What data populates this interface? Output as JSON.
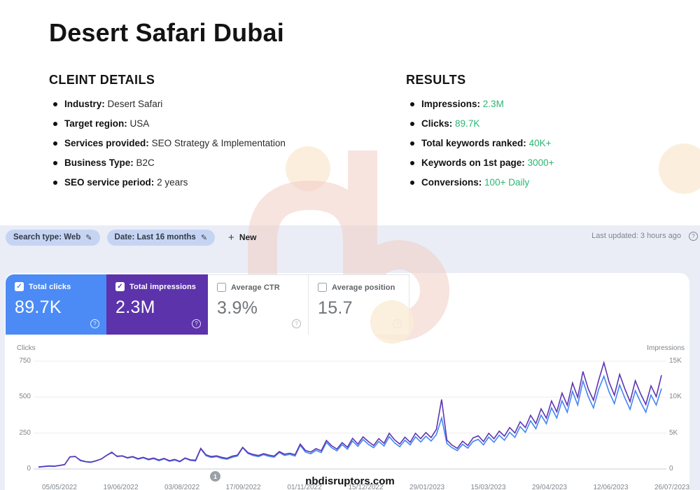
{
  "page": {
    "title": "Desert Safari Dubai",
    "brand_watermark": "nb",
    "site_watermark": "nbdisruptors.com"
  },
  "client_details": {
    "heading": "CLEINT DETAILS",
    "items": [
      {
        "label": "Industry:",
        "value": "Desert Safari"
      },
      {
        "label": "Target region:",
        "value": "USA"
      },
      {
        "label": "Services provided:",
        "value": "SEO Strategy & Implementation"
      },
      {
        "label": "Business Type:",
        "value": "B2C"
      },
      {
        "label": "SEO service period:",
        "value": "2 years"
      }
    ]
  },
  "results": {
    "heading": "RESULTS",
    "accent_color": "#2bb673",
    "items": [
      {
        "label": "Impressions:",
        "value": "2.3M"
      },
      {
        "label": "Clicks:",
        "value": "89.7K"
      },
      {
        "label": "Total keywords ranked:",
        "value": "40K+"
      },
      {
        "label": "Keywords on 1st page:",
        "value": "3000+"
      },
      {
        "label": "Conversions:",
        "value": "100+ Daily"
      }
    ]
  },
  "search_console": {
    "filter_bar": {
      "pills": [
        {
          "text": "Search type: Web",
          "icon": "pencil-icon"
        },
        {
          "text": "Date: Last 16 months",
          "icon": "pencil-icon"
        }
      ],
      "new_button": "New",
      "last_updated": "Last updated: 3 hours ago"
    },
    "metric_cards": [
      {
        "label": "Total clicks",
        "value": "89.7K",
        "checked": true,
        "bg": "#4c8bf5",
        "text": "#ffffff"
      },
      {
        "label": "Total impressions",
        "value": "2.3M",
        "checked": true,
        "bg": "#5c33ab",
        "text": "#ffffff"
      },
      {
        "label": "Average CTR",
        "value": "3.9%",
        "checked": false,
        "bg": "#ffffff",
        "text": "#70757a"
      },
      {
        "label": "Average position",
        "value": "15.7",
        "checked": false,
        "bg": "#ffffff",
        "text": "#70757a"
      }
    ],
    "annotation_badge": "1",
    "chart_data": {
      "type": "line",
      "grid": true,
      "legend": "none",
      "left_axis": {
        "label": "Clicks",
        "ticks": [
          "750",
          "500",
          "250",
          "0"
        ],
        "max": 750
      },
      "right_axis": {
        "label": "Impressions",
        "ticks": [
          "15K",
          "10K",
          "5K",
          "0"
        ],
        "max": 15000
      },
      "x_labels": [
        "05/05/2022",
        "19/06/2022",
        "03/08/2022",
        "17/09/2022",
        "01/11/2022",
        "15/12/2022",
        "29/01/2023",
        "15/03/2023",
        "29/04/2023",
        "12/06/2023",
        "26/07/2023"
      ],
      "series": [
        {
          "name": "Total clicks",
          "color": "#4285f4",
          "axis": "left",
          "values": [
            12,
            16,
            20,
            18,
            24,
            30,
            85,
            88,
            58,
            50,
            46,
            56,
            70,
            95,
            118,
            86,
            90,
            76,
            84,
            68,
            78,
            64,
            72,
            58,
            70,
            54,
            62,
            50,
            74,
            60,
            56,
            140,
            92,
            80,
            86,
            74,
            68,
            82,
            90,
            148,
            108,
            94,
            86,
            100,
            88,
            82,
            115,
            94,
            102,
            90,
            165,
            118,
            106,
            130,
            114,
            185,
            148,
            126,
            170,
            138,
            195,
            158,
            205,
            172,
            148,
            192,
            160,
            225,
            182,
            155,
            200,
            168,
            224,
            188,
            228,
            195,
            240,
            355,
            178,
            148,
            128,
            172,
            145,
            192,
            206,
            168,
            222,
            186,
            235,
            200,
            255,
            220,
            295,
            255,
            335,
            280,
            375,
            315,
            425,
            355,
            475,
            395,
            540,
            445,
            612,
            505,
            425,
            555,
            645,
            535,
            455,
            585,
            495,
            415,
            545,
            465,
            395,
            515,
            445,
            560
          ]
        },
        {
          "name": "Total impressions",
          "color": "#5e35b1",
          "axis": "right",
          "values": [
            280,
            360,
            430,
            400,
            500,
            620,
            1680,
            1730,
            1230,
            1030,
            960,
            1160,
            1380,
            1880,
            2280,
            1780,
            1830,
            1580,
            1730,
            1430,
            1630,
            1360,
            1530,
            1260,
            1480,
            1160,
            1330,
            1060,
            1530,
            1280,
            1230,
            2870,
            1980,
            1730,
            1830,
            1630,
            1480,
            1780,
            1930,
            3020,
            2280,
            2030,
            1880,
            2130,
            1930,
            1800,
            2430,
            2060,
            2200,
            1980,
            3470,
            2580,
            2360,
            2830,
            2530,
            3970,
            3230,
            2780,
            3670,
            3030,
            4270,
            3470,
            4470,
            3830,
            3270,
            4220,
            3570,
            4970,
            4070,
            3470,
            4420,
            3720,
            4970,
            4220,
            5070,
            4370,
            5520,
            9670,
            4020,
            3320,
            2870,
            3870,
            3270,
            4320,
            4620,
            3820,
            4970,
            4220,
            5270,
            4570,
            5770,
            5020,
            6570,
            5770,
            7470,
            6320,
            8370,
            7070,
            9470,
            7970,
            10570,
            8870,
            11970,
            9970,
            13570,
            11170,
            9570,
            12370,
            14800,
            12070,
            10270,
            13170,
            11170,
            9370,
            12270,
            10470,
            8970,
            11570,
            10070,
            13050
          ]
        }
      ]
    }
  }
}
